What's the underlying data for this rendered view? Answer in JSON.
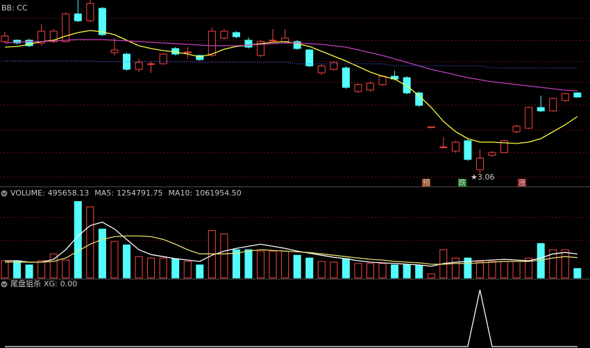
{
  "chart_data": [
    {
      "type": "candlestick",
      "title": "BB: CC",
      "title_color": "#ff60ff",
      "up_color": "#ff4646",
      "down_color": "#54fcfc",
      "ylim": [
        3.0,
        3.81
      ],
      "open": [
        3.63,
        3.636,
        3.636,
        3.624,
        3.63,
        3.63,
        3.75,
        3.72,
        3.774,
        3.582,
        3.576,
        3.51,
        3.534,
        3.534,
        3.6,
        3.585,
        3.57,
        3.57,
        3.645,
        3.669,
        3.636,
        3.57,
        3.636,
        3.63,
        3.63,
        3.594,
        3.495,
        3.51,
        3.516,
        3.414,
        3.42,
        3.444,
        3.48,
        3.474,
        3.408,
        3.261,
        3.174,
        3.156,
        3.201,
        3.075,
        3.138,
        3.15,
        3.24,
        3.255,
        3.345,
        3.33,
        3.375,
        3.408
      ],
      "close": [
        3.654,
        3.624,
        3.612,
        3.675,
        3.675,
        3.75,
        3.72,
        3.795,
        3.66,
        3.594,
        3.51,
        3.54,
        3.534,
        3.576,
        3.576,
        3.585,
        3.552,
        3.675,
        3.675,
        3.651,
        3.606,
        3.63,
        3.636,
        3.645,
        3.6,
        3.525,
        3.525,
        3.54,
        3.432,
        3.444,
        3.45,
        3.48,
        3.468,
        3.408,
        3.354,
        3.261,
        3.174,
        3.195,
        3.12,
        3.126,
        3.15,
        3.201,
        3.264,
        3.345,
        3.33,
        3.384,
        3.405,
        3.39
      ],
      "high": [
        3.672,
        3.639,
        3.642,
        3.705,
        3.684,
        3.756,
        3.81,
        3.81,
        3.78,
        3.645,
        3.582,
        3.555,
        3.546,
        3.579,
        3.606,
        3.606,
        3.573,
        3.69,
        3.684,
        3.675,
        3.648,
        3.636,
        3.684,
        3.684,
        3.636,
        3.597,
        3.534,
        3.546,
        3.522,
        3.45,
        3.456,
        3.486,
        3.504,
        3.48,
        3.414,
        3.261,
        3.216,
        3.201,
        3.207,
        3.165,
        3.156,
        3.204,
        3.27,
        3.348,
        3.396,
        3.387,
        3.408,
        3.411
      ],
      "low": [
        3.624,
        3.618,
        3.606,
        3.612,
        3.624,
        3.627,
        3.714,
        3.714,
        3.654,
        3.57,
        3.504,
        3.498,
        3.495,
        3.531,
        3.57,
        3.555,
        3.546,
        3.564,
        3.639,
        3.645,
        3.6,
        3.564,
        3.63,
        3.624,
        3.594,
        3.519,
        3.486,
        3.504,
        3.426,
        3.408,
        3.414,
        3.438,
        3.462,
        3.402,
        3.348,
        3.261,
        3.168,
        3.15,
        3.114,
        3.06,
        3.132,
        3.147,
        3.234,
        3.252,
        3.324,
        3.327,
        3.369,
        3.387
      ],
      "lines": [
        {
          "color": "#ffff40",
          "values": [
            3.606,
            3.609,
            3.618,
            3.63,
            3.636,
            3.654,
            3.669,
            3.678,
            3.672,
            3.66,
            3.636,
            3.612,
            3.6,
            3.591,
            3.585,
            3.576,
            3.564,
            3.576,
            3.597,
            3.609,
            3.615,
            3.621,
            3.627,
            3.63,
            3.621,
            3.609,
            3.588,
            3.567,
            3.546,
            3.522,
            3.498,
            3.48,
            3.468,
            3.438,
            3.396,
            3.345,
            3.285,
            3.24,
            3.21,
            3.195,
            3.195,
            3.192,
            3.189,
            3.195,
            3.21,
            3.24,
            3.27,
            3.306
          ]
        },
        {
          "color": "#c040c0",
          "values": [
            3.624,
            3.627,
            3.63,
            3.63,
            3.633,
            3.636,
            3.639,
            3.639,
            3.639,
            3.636,
            3.633,
            3.63,
            3.627,
            3.624,
            3.621,
            3.618,
            3.615,
            3.612,
            3.612,
            3.612,
            3.615,
            3.618,
            3.621,
            3.624,
            3.624,
            3.621,
            3.618,
            3.612,
            3.606,
            3.594,
            3.582,
            3.57,
            3.555,
            3.54,
            3.525,
            3.51,
            3.498,
            3.486,
            3.474,
            3.465,
            3.456,
            3.45,
            3.444,
            3.438,
            3.432,
            3.426,
            3.42,
            3.417
          ]
        },
        {
          "color": "#3c5cff",
          "dashed": true,
          "values": [
            3.546,
            3.546,
            3.546,
            3.546,
            3.546,
            3.546,
            3.546,
            3.546,
            3.543,
            3.543,
            3.543,
            3.543,
            3.543,
            3.543,
            3.543,
            3.543,
            3.54,
            3.54,
            3.54,
            3.54,
            3.54,
            3.54,
            3.54,
            3.54,
            3.534,
            3.534,
            3.534,
            3.534,
            3.534,
            3.534,
            3.534,
            3.534,
            3.525,
            3.525,
            3.525,
            3.525,
            3.525,
            3.525,
            3.525,
            3.525,
            3.516,
            3.516,
            3.516,
            3.516,
            3.516,
            3.516,
            3.516,
            3.516
          ]
        }
      ],
      "annotations": [
        {
          "text": "3.06",
          "color": "#c8c8c8"
        }
      ],
      "signals": [
        {
          "text": "预",
          "color": "#ffb060",
          "background": "#a04010"
        },
        {
          "text": "跌",
          "color": "#80ff80",
          "background": "#208020"
        },
        {
          "text": "涨",
          "color": "#ff9090",
          "background": "#a02020"
        }
      ]
    },
    {
      "type": "bar",
      "title": "VOLUME:",
      "value_label": "495658.13",
      "ylim": [
        0,
        4200000
      ],
      "values": [
        900000,
        900000,
        684000,
        900000,
        1260000,
        936000,
        3996000,
        3708000,
        2556000,
        1908000,
        1728000,
        1116000,
        1044000,
        1044000,
        1008000,
        864000,
        684000,
        2484000,
        2304000,
        1476000,
        1476000,
        1404000,
        1404000,
        1404000,
        1188000,
        1044000,
        864000,
        828000,
        1008000,
        756000,
        756000,
        756000,
        684000,
        684000,
        648000,
        216000,
        1476000,
        1044000,
        1044000,
        864000,
        864000,
        864000,
        864000,
        1044000,
        1800000,
        1476000,
        1476000,
        495658.13
      ],
      "lines": [
        {
          "name": "MA5:",
          "color": "#ffffff",
          "value_label": "1254791.75",
          "values": [
            900000,
            900000,
            828000,
            828000,
            972000,
            1476000,
            2196000,
            2736000,
            2916000,
            2556000,
            2016000,
            1476000,
            1224000,
            1116000,
            1008000,
            936000,
            864000,
            1188000,
            1404000,
            1548000,
            1656000,
            1764000,
            1656000,
            1548000,
            1404000,
            1296000,
            1188000,
            1080000,
            1008000,
            900000,
            828000,
            792000,
            756000,
            720000,
            684000,
            612000,
            756000,
            828000,
            864000,
            900000,
            936000,
            972000,
            936000,
            900000,
            1044000,
            1260000,
            1332000,
            1254791.75
          ]
        },
        {
          "name": "MA10:",
          "color": "#e8e070",
          "value_label": "1061954.50",
          "values": [
            828000,
            828000,
            828000,
            828000,
            864000,
            1044000,
            1404000,
            1764000,
            2016000,
            2160000,
            2196000,
            2196000,
            2160000,
            2016000,
            1764000,
            1476000,
            1260000,
            1260000,
            1260000,
            1296000,
            1404000,
            1476000,
            1440000,
            1404000,
            1368000,
            1332000,
            1260000,
            1188000,
            1116000,
            1044000,
            972000,
            936000,
            864000,
            828000,
            792000,
            720000,
            720000,
            756000,
            756000,
            792000,
            828000,
            864000,
            864000,
            864000,
            936000,
            1044000,
            1116000,
            1061954.5
          ]
        }
      ]
    },
    {
      "type": "line",
      "title": "尾盘狙杀",
      "ylim": [
        0,
        1.1
      ],
      "series": [
        {
          "name": "XG:",
          "color": "#ffffff",
          "value_label": "0.00",
          "values": [
            0,
            0,
            0,
            0,
            0,
            0,
            0,
            0,
            0,
            0,
            0,
            0,
            0,
            0,
            0,
            0,
            0,
            0,
            0,
            0,
            0,
            0,
            0,
            0,
            0,
            0,
            0,
            0,
            0,
            0,
            0,
            0,
            0,
            0,
            0,
            0,
            0,
            0,
            0,
            1,
            0,
            0,
            0,
            0,
            0,
            0,
            0,
            0
          ]
        }
      ]
    }
  ]
}
